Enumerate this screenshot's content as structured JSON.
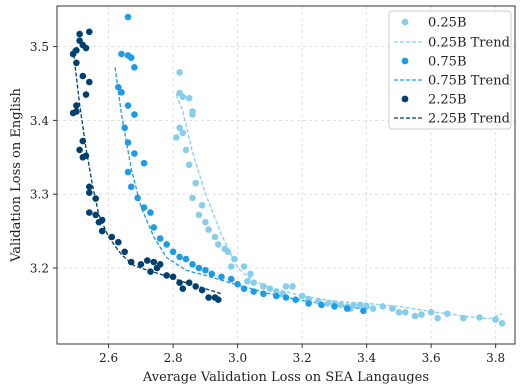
{
  "chart_data": {
    "type": "scatter",
    "xlabel": "Average Validation Loss on SEA Langauges",
    "ylabel": "Validation Loss on English",
    "xlim": [
      2.44,
      3.86
    ],
    "ylim": [
      3.097,
      3.555
    ],
    "x_ticks": [
      2.6,
      2.8,
      3.0,
      3.2,
      3.4,
      3.6,
      3.8
    ],
    "x_tick_labels": [
      "2.6",
      "2.8",
      "3.0",
      "3.2",
      "3.4",
      "3.6",
      "3.8"
    ],
    "y_ticks": [
      3.2,
      3.3,
      3.4,
      3.5
    ],
    "y_tick_labels": [
      "3.2",
      "3.3",
      "3.4",
      "3.5"
    ],
    "grid": true,
    "legend_position": "top-right",
    "series": [
      {
        "name": "0.25B",
        "trend_name": "0.25B Trend",
        "color": "#87ceeb",
        "points": [
          [
            2.82,
            3.465
          ],
          [
            2.82,
            3.437
          ],
          [
            2.83,
            3.432
          ],
          [
            2.85,
            3.43
          ],
          [
            2.86,
            3.412
          ],
          [
            2.86,
            3.408
          ],
          [
            2.82,
            3.39
          ],
          [
            2.83,
            3.383
          ],
          [
            2.81,
            3.377
          ],
          [
            2.84,
            3.36
          ],
          [
            2.85,
            3.34
          ],
          [
            2.87,
            3.315
          ],
          [
            2.86,
            3.295
          ],
          [
            2.89,
            3.285
          ],
          [
            2.88,
            3.272
          ],
          [
            2.9,
            3.262
          ],
          [
            2.91,
            3.252
          ],
          [
            2.93,
            3.242
          ],
          [
            2.94,
            3.232
          ],
          [
            2.96,
            3.226
          ],
          [
            2.97,
            3.222
          ],
          [
            2.99,
            3.212
          ],
          [
            2.98,
            3.202
          ],
          [
            3.02,
            3.202
          ],
          [
            3.04,
            3.192
          ],
          [
            3.03,
            3.182
          ],
          [
            3.05,
            3.18
          ],
          [
            3.08,
            3.175
          ],
          [
            3.1,
            3.172
          ],
          [
            3.12,
            3.168
          ],
          [
            3.15,
            3.175
          ],
          [
            3.14,
            3.165
          ],
          [
            3.17,
            3.175
          ],
          [
            3.2,
            3.162
          ],
          [
            3.22,
            3.158
          ],
          [
            3.25,
            3.155
          ],
          [
            3.28,
            3.152
          ],
          [
            3.3,
            3.152
          ],
          [
            3.32,
            3.15
          ],
          [
            3.34,
            3.148
          ],
          [
            3.35,
            3.145
          ],
          [
            3.36,
            3.15
          ],
          [
            3.38,
            3.15
          ],
          [
            3.4,
            3.148
          ],
          [
            3.42,
            3.145
          ],
          [
            3.45,
            3.148
          ],
          [
            3.48,
            3.145
          ],
          [
            3.5,
            3.14
          ],
          [
            3.52,
            3.14
          ],
          [
            3.55,
            3.135
          ],
          [
            3.57,
            3.137
          ],
          [
            3.6,
            3.14
          ],
          [
            3.62,
            3.132
          ],
          [
            3.65,
            3.138
          ],
          [
            3.7,
            3.132
          ],
          [
            3.75,
            3.133
          ],
          [
            3.8,
            3.13
          ],
          [
            3.82,
            3.125
          ]
        ],
        "trend": [
          [
            2.81,
            3.435
          ],
          [
            2.83,
            3.412
          ],
          [
            2.86,
            3.357
          ],
          [
            2.9,
            3.301
          ],
          [
            2.95,
            3.245
          ],
          [
            3.0,
            3.2
          ],
          [
            3.05,
            3.182
          ],
          [
            3.1,
            3.174
          ],
          [
            3.2,
            3.162
          ],
          [
            3.3,
            3.155
          ],
          [
            3.4,
            3.152
          ],
          [
            3.5,
            3.148
          ],
          [
            3.6,
            3.141
          ],
          [
            3.7,
            3.135
          ],
          [
            3.78,
            3.131
          ],
          [
            3.82,
            3.138
          ]
        ]
      },
      {
        "name": "0.75B",
        "trend_name": "0.75B Trend",
        "color": "#1e9be8",
        "points": [
          [
            2.66,
            3.54
          ],
          [
            2.64,
            3.49
          ],
          [
            2.66,
            3.488
          ],
          [
            2.67,
            3.485
          ],
          [
            2.68,
            3.472
          ],
          [
            2.63,
            3.445
          ],
          [
            2.64,
            3.438
          ],
          [
            2.66,
            3.42
          ],
          [
            2.68,
            3.408
          ],
          [
            2.65,
            3.39
          ],
          [
            2.66,
            3.37
          ],
          [
            2.68,
            3.355
          ],
          [
            2.71,
            3.342
          ],
          [
            2.66,
            3.33
          ],
          [
            2.67,
            3.31
          ],
          [
            2.69,
            3.295
          ],
          [
            2.71,
            3.282
          ],
          [
            2.73,
            3.275
          ],
          [
            2.74,
            3.255
          ],
          [
            2.76,
            3.24
          ],
          [
            2.78,
            3.232
          ],
          [
            2.8,
            3.222
          ],
          [
            2.82,
            3.215
          ],
          [
            2.84,
            3.212
          ],
          [
            2.86,
            3.205
          ],
          [
            2.88,
            3.2
          ],
          [
            2.9,
            3.197
          ],
          [
            2.92,
            3.192
          ],
          [
            2.95,
            3.188
          ],
          [
            2.98,
            3.185
          ],
          [
            3.0,
            3.178
          ],
          [
            3.02,
            3.172
          ],
          [
            3.05,
            3.168
          ],
          [
            3.08,
            3.165
          ],
          [
            3.12,
            3.162
          ],
          [
            3.15,
            3.16
          ],
          [
            3.18,
            3.157
          ],
          [
            3.22,
            3.152
          ],
          [
            3.26,
            3.15
          ],
          [
            3.3,
            3.148
          ],
          [
            3.34,
            3.145
          ],
          [
            3.39,
            3.142
          ]
        ],
        "trend": [
          [
            2.62,
            3.472
          ],
          [
            2.64,
            3.408
          ],
          [
            2.67,
            3.335
          ],
          [
            2.7,
            3.283
          ],
          [
            2.74,
            3.242
          ],
          [
            2.78,
            3.214
          ],
          [
            2.84,
            3.197
          ],
          [
            2.9,
            3.19
          ],
          [
            3.0,
            3.177
          ],
          [
            3.1,
            3.165
          ],
          [
            3.2,
            3.156
          ],
          [
            3.3,
            3.149
          ],
          [
            3.36,
            3.146
          ],
          [
            3.39,
            3.145
          ]
        ]
      },
      {
        "name": "2.25B",
        "trend_name": "2.25B Trend",
        "color": "#004070",
        "points": [
          [
            2.54,
            3.52
          ],
          [
            2.51,
            3.517
          ],
          [
            2.51,
            3.508
          ],
          [
            2.52,
            3.502
          ],
          [
            2.5,
            3.495
          ],
          [
            2.53,
            3.498
          ],
          [
            2.49,
            3.49
          ],
          [
            2.5,
            3.478
          ],
          [
            2.52,
            3.46
          ],
          [
            2.54,
            3.452
          ],
          [
            2.53,
            3.435
          ],
          [
            2.5,
            3.42
          ],
          [
            2.5,
            3.412
          ],
          [
            2.49,
            3.41
          ],
          [
            2.52,
            3.372
          ],
          [
            2.51,
            3.36
          ],
          [
            2.53,
            3.352
          ],
          [
            2.52,
            3.35
          ],
          [
            2.54,
            3.31
          ],
          [
            2.54,
            3.302
          ],
          [
            2.56,
            3.294
          ],
          [
            2.54,
            3.275
          ],
          [
            2.56,
            3.272
          ],
          [
            2.58,
            3.265
          ],
          [
            2.57,
            3.262
          ],
          [
            2.58,
            3.25
          ],
          [
            2.61,
            3.242
          ],
          [
            2.63,
            3.235
          ],
          [
            2.65,
            3.222
          ],
          [
            2.67,
            3.208
          ],
          [
            2.7,
            3.205
          ],
          [
            2.72,
            3.21
          ],
          [
            2.74,
            3.208
          ],
          [
            2.76,
            3.205
          ],
          [
            2.73,
            3.195
          ],
          [
            2.75,
            3.2
          ],
          [
            2.78,
            3.19
          ],
          [
            2.8,
            3.188
          ],
          [
            2.82,
            3.18
          ],
          [
            2.83,
            3.172
          ],
          [
            2.85,
            3.18
          ],
          [
            2.87,
            3.175
          ],
          [
            2.89,
            3.17
          ],
          [
            2.91,
            3.16
          ],
          [
            2.93,
            3.16
          ],
          [
            2.94,
            3.157
          ]
        ],
        "trend": [
          [
            2.49,
            3.497
          ],
          [
            2.51,
            3.422
          ],
          [
            2.53,
            3.362
          ],
          [
            2.55,
            3.312
          ],
          [
            2.57,
            3.272
          ],
          [
            2.6,
            3.242
          ],
          [
            2.64,
            3.218
          ],
          [
            2.68,
            3.203
          ],
          [
            2.72,
            3.197
          ],
          [
            2.78,
            3.189
          ],
          [
            2.84,
            3.18
          ],
          [
            2.9,
            3.172
          ],
          [
            2.95,
            3.165
          ]
        ]
      }
    ]
  }
}
